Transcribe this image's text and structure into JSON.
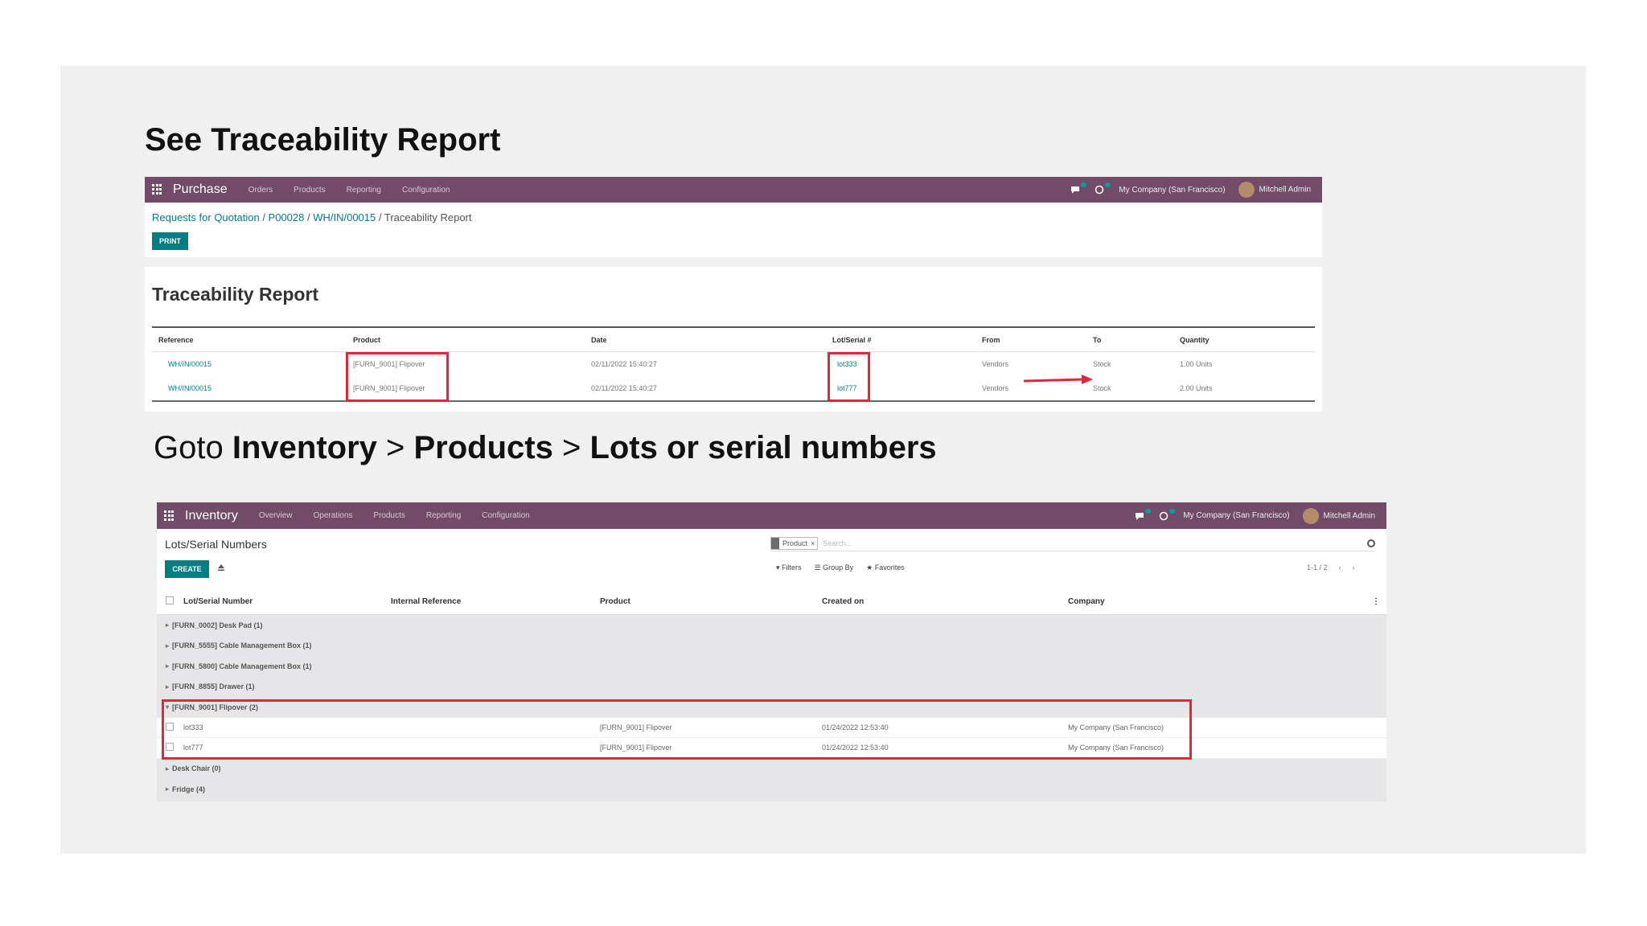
{
  "slide": {
    "heading1": "See Traceability Report",
    "heading2_parts": {
      "prefix": "Goto ",
      "step1": "Inventory",
      "sep1": " > ",
      "step2": "Products",
      "sep2": " > ",
      "step3": "Lots or serial numbers"
    }
  },
  "purchase_screen": {
    "app_name": "Purchase",
    "menu": [
      "Orders",
      "Products",
      "Reporting",
      "Configuration"
    ],
    "company": "My Company (San Francisco)",
    "user": "Mitchell Admin",
    "breadcrumb": {
      "item1": "Requests for Quotation",
      "sep": " / ",
      "item2": "P00028",
      "item3": "WH/IN/00015",
      "current": "Traceability Report"
    },
    "print_label": "PRINT",
    "report_title": "Traceability Report",
    "columns": [
      "Reference",
      "Product",
      "Date",
      "Lot/Serial #",
      "From",
      "To",
      "Quantity"
    ],
    "rows": [
      {
        "reference": "WH/IN/00015",
        "product": "[FURN_9001] Flipover",
        "date": "02/11/2022 15:40:27",
        "lot": "lot333",
        "from": "Vendors",
        "to": "Stock",
        "quantity": "1.00 Units"
      },
      {
        "reference": "WH/IN/00015",
        "product": "[FURN_9001] Flipover",
        "date": "02/11/2022 15:40:27",
        "lot": "lot777",
        "from": "Vendors",
        "to": "Stock",
        "quantity": "2.00 Units"
      }
    ],
    "highlight_color": "#e0283a",
    "brand_color": "#714b67",
    "accent_color": "#017e84"
  },
  "inventory_screen": {
    "app_name": "Inventory",
    "menu": [
      "Overview",
      "Operations",
      "Products",
      "Reporting",
      "Configuration"
    ],
    "company": "My Company (San Francisco)",
    "user": "Mitchell Admin",
    "list_title": "Lots/Serial Numbers",
    "create_label": "CREATE",
    "search_facet": "Product",
    "search_placeholder": "Search...",
    "filters": [
      "Filters",
      "Group By",
      "Favorites"
    ],
    "pager": "1-1 / 2",
    "columns": [
      "Lot/Serial Number",
      "Internal Reference",
      "Product",
      "Created on",
      "Company"
    ],
    "groups_before": [
      "[FURN_0002] Desk Pad (1)",
      "[FURN_5555] Cable Management Box (1)",
      "[FURN_5800] Cable Management Box (1)",
      "[FURN_8855] Drawer (1)"
    ],
    "open_group": "[FURN_9001] Flipover (2)",
    "open_rows": [
      {
        "lot": "lot333",
        "ref": "",
        "product": "[FURN_9001] Flipover",
        "created": "01/24/2022 12:53:40",
        "company": "My Company (San Francisco)"
      },
      {
        "lot": "lot777",
        "ref": "",
        "product": "[FURN_9001] Flipover",
        "created": "01/24/2022 12:53:40",
        "company": "My Company (San Francisco)"
      }
    ],
    "groups_after": [
      "Desk Chair (0)",
      "Fridge (4)"
    ]
  }
}
